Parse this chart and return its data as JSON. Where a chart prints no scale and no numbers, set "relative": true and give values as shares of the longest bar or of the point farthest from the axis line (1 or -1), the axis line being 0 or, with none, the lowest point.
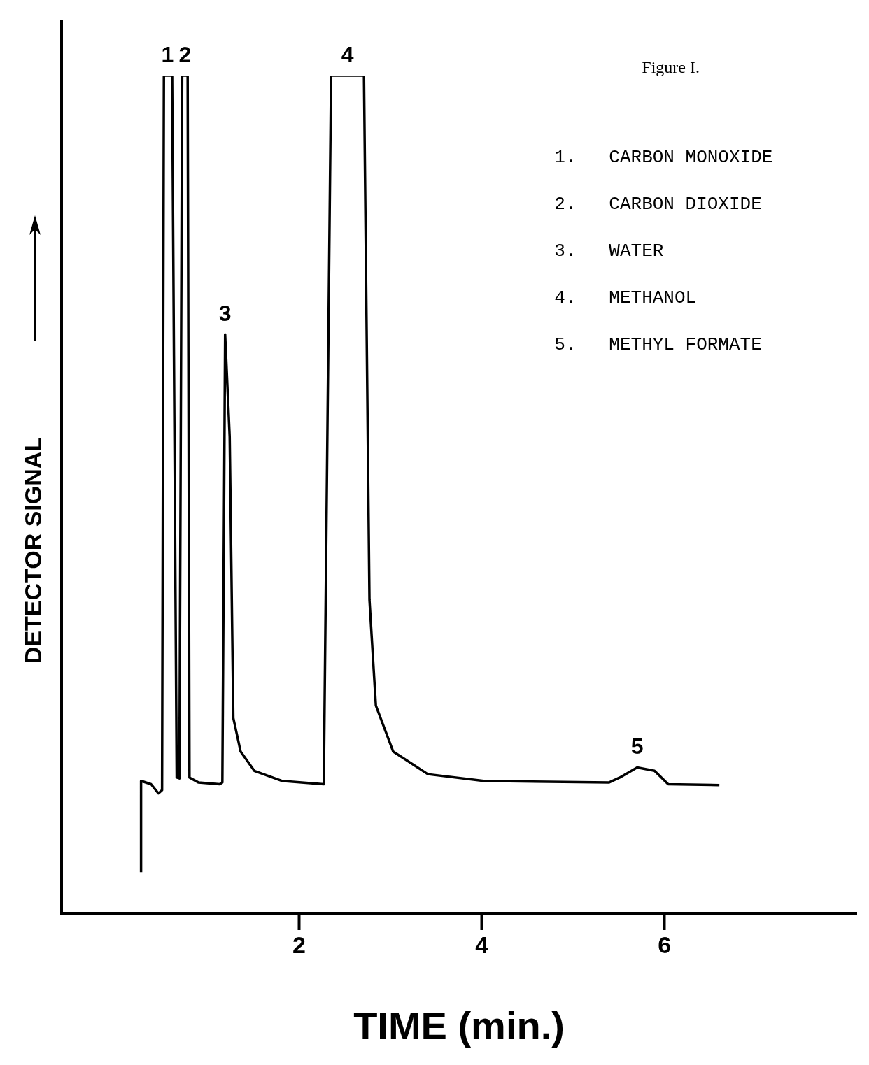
{
  "chart_data": {
    "type": "line",
    "relative": true,
    "xlabel": "TIME (min.)",
    "ylabel": "DETECTOR SIGNAL",
    "xlim": [
      -0.6,
      8.1
    ],
    "xticks": [
      2,
      4,
      6
    ],
    "grid": false,
    "legend": false,
    "marker": "none",
    "line_style": "solid",
    "series": [
      {
        "color": "#000000",
        "x": [
          0.27,
          0.27,
          0.38,
          0.46,
          0.5,
          0.52,
          0.61,
          0.66,
          0.69,
          0.72,
          0.78,
          0.8,
          0.9,
          1.13,
          1.16,
          1.19,
          1.24,
          1.28,
          1.36,
          1.51,
          1.81,
          2.27,
          2.35,
          2.71,
          2.77,
          2.84,
          3.03,
          3.41,
          4.02,
          5.39,
          5.51,
          5.7,
          5.89,
          6.04,
          6.6
        ],
        "values": [
          0.049,
          0.158,
          0.154,
          0.143,
          0.147,
          1.0,
          1.0,
          0.162,
          0.161,
          1.0,
          1.0,
          0.162,
          0.156,
          0.154,
          0.156,
          0.691,
          0.569,
          0.233,
          0.193,
          0.17,
          0.158,
          0.154,
          1.0,
          1.0,
          0.374,
          0.248,
          0.193,
          0.166,
          0.158,
          0.156,
          0.162,
          0.174,
          0.17,
          0.154,
          0.153
        ]
      }
    ],
    "annotations": [
      "Figure I.",
      "1.   CARBON MONOXIDE",
      "2.   CARBON DIOXIDE",
      "3.   WATER",
      "4.   METHANOL",
      "5.   METHYL FORMATE",
      {
        "text": "1",
        "x": 0.56,
        "y": 1.0
      },
      {
        "text": "2",
        "x": 0.75,
        "y": 1.0
      },
      {
        "text": "3",
        "x": 1.19,
        "y": 0.691
      },
      {
        "text": "4",
        "x": 2.53,
        "y": 1.0
      },
      {
        "text": "5",
        "x": 5.7,
        "y": 0.174
      }
    ]
  }
}
